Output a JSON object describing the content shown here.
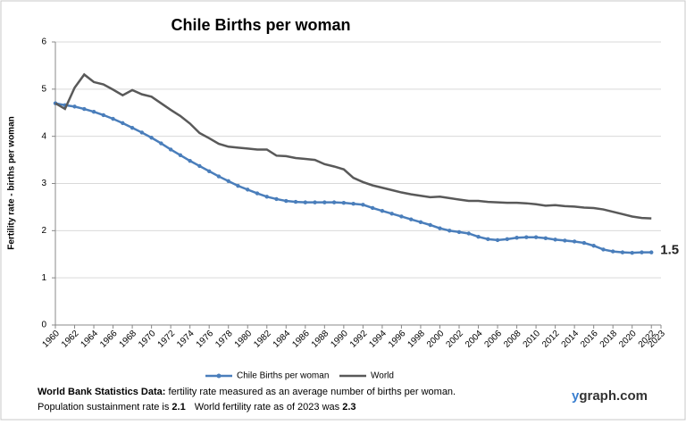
{
  "chart_data": {
    "type": "line",
    "title": "Chile Births per woman",
    "y_label": "Fertility rate  - births per woman",
    "x": [
      1960,
      1961,
      1962,
      1963,
      1964,
      1965,
      1966,
      1967,
      1968,
      1969,
      1970,
      1971,
      1972,
      1973,
      1974,
      1975,
      1976,
      1977,
      1978,
      1979,
      1980,
      1981,
      1982,
      1983,
      1984,
      1985,
      1986,
      1987,
      1988,
      1989,
      1990,
      1991,
      1992,
      1993,
      1994,
      1995,
      1996,
      1997,
      1998,
      1999,
      2000,
      2001,
      2002,
      2003,
      2004,
      2005,
      2006,
      2007,
      2008,
      2009,
      2010,
      2011,
      2012,
      2013,
      2014,
      2015,
      2016,
      2017,
      2018,
      2019,
      2020,
      2021,
      2022
    ],
    "series": [
      {
        "name": "Chile Births per woman",
        "color": "#4a7ebb",
        "markers": true,
        "end_label": "1.5",
        "values": [
          4.7,
          4.66,
          4.63,
          4.58,
          4.52,
          4.45,
          4.37,
          4.28,
          4.18,
          4.08,
          3.97,
          3.85,
          3.72,
          3.6,
          3.48,
          3.37,
          3.26,
          3.15,
          3.05,
          2.95,
          2.87,
          2.79,
          2.72,
          2.67,
          2.63,
          2.61,
          2.6,
          2.6,
          2.6,
          2.6,
          2.59,
          2.57,
          2.55,
          2.48,
          2.42,
          2.36,
          2.3,
          2.24,
          2.18,
          2.12,
          2.05,
          2.0,
          1.97,
          1.94,
          1.87,
          1.82,
          1.8,
          1.82,
          1.85,
          1.86,
          1.86,
          1.84,
          1.81,
          1.79,
          1.77,
          1.74,
          1.68,
          1.6,
          1.56,
          1.54,
          1.53,
          1.54,
          1.54
        ]
      },
      {
        "name": "World",
        "color": "#595959",
        "markers": false,
        "values": [
          4.7,
          4.58,
          5.03,
          5.31,
          5.15,
          5.1,
          4.99,
          4.87,
          4.98,
          4.89,
          4.84,
          4.7,
          4.56,
          4.43,
          4.27,
          4.07,
          3.96,
          3.84,
          3.78,
          3.76,
          3.74,
          3.72,
          3.72,
          3.59,
          3.58,
          3.54,
          3.52,
          3.5,
          3.41,
          3.36,
          3.3,
          3.12,
          3.03,
          2.96,
          2.91,
          2.86,
          2.81,
          2.77,
          2.74,
          2.71,
          2.72,
          2.69,
          2.66,
          2.63,
          2.63,
          2.61,
          2.6,
          2.59,
          2.59,
          2.58,
          2.56,
          2.53,
          2.54,
          2.52,
          2.51,
          2.49,
          2.48,
          2.45,
          2.4,
          2.35,
          2.3,
          2.27,
          2.26
        ]
      }
    ],
    "xlim": [
      1960,
      2023
    ],
    "xticks": [
      1960,
      1962,
      1964,
      1966,
      1968,
      1970,
      1972,
      1974,
      1976,
      1978,
      1980,
      1982,
      1984,
      1986,
      1988,
      1990,
      1992,
      1994,
      1996,
      1998,
      2000,
      2002,
      2004,
      2006,
      2008,
      2010,
      2012,
      2014,
      2016,
      2018,
      2020,
      2022,
      2023
    ],
    "ylim": [
      0,
      6
    ],
    "yticks": [
      0,
      1,
      2,
      3,
      4,
      5,
      6
    ],
    "grid": true,
    "legend": "bottom"
  },
  "footer": {
    "source_label": "World Bank Statistics Data:",
    "source_text": " fertility rate measured as an average number  of births per woman.",
    "sustain_text": "Population sustainment rate is ",
    "sustain_value": "2.1",
    "world_text": "World fertility rate as of 2023 was ",
    "world_value": "2.3",
    "brand_prefix": "y",
    "brand_rest": "graph.com"
  }
}
